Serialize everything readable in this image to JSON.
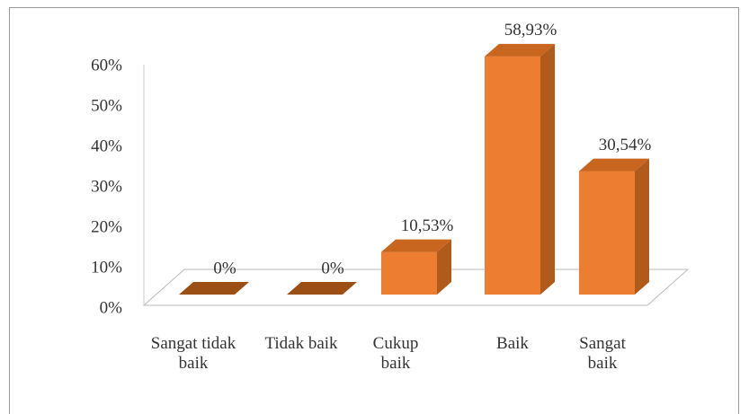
{
  "chart_data": {
    "type": "bar3d",
    "categories": [
      "Sangat tidak baik",
      "Tidak baik",
      "Cukup baik",
      "Baik",
      "Sangat baik"
    ],
    "values": [
      0,
      0,
      10.53,
      58.93,
      30.54
    ],
    "value_labels": [
      "0%",
      "0%",
      "10,53%",
      "58,93%",
      "30,54%"
    ],
    "color": "#ed7d31",
    "ylim": [
      0,
      60
    ],
    "yticks": [
      {
        "value": 0,
        "label": "0%"
      },
      {
        "value": 10,
        "label": "10%"
      },
      {
        "value": 20,
        "label": "20%"
      },
      {
        "value": 30,
        "label": "30%"
      },
      {
        "value": 40,
        "label": "40%"
      },
      {
        "value": 50,
        "label": "50%"
      },
      {
        "value": 60,
        "label": "60%"
      }
    ],
    "grid": false
  }
}
